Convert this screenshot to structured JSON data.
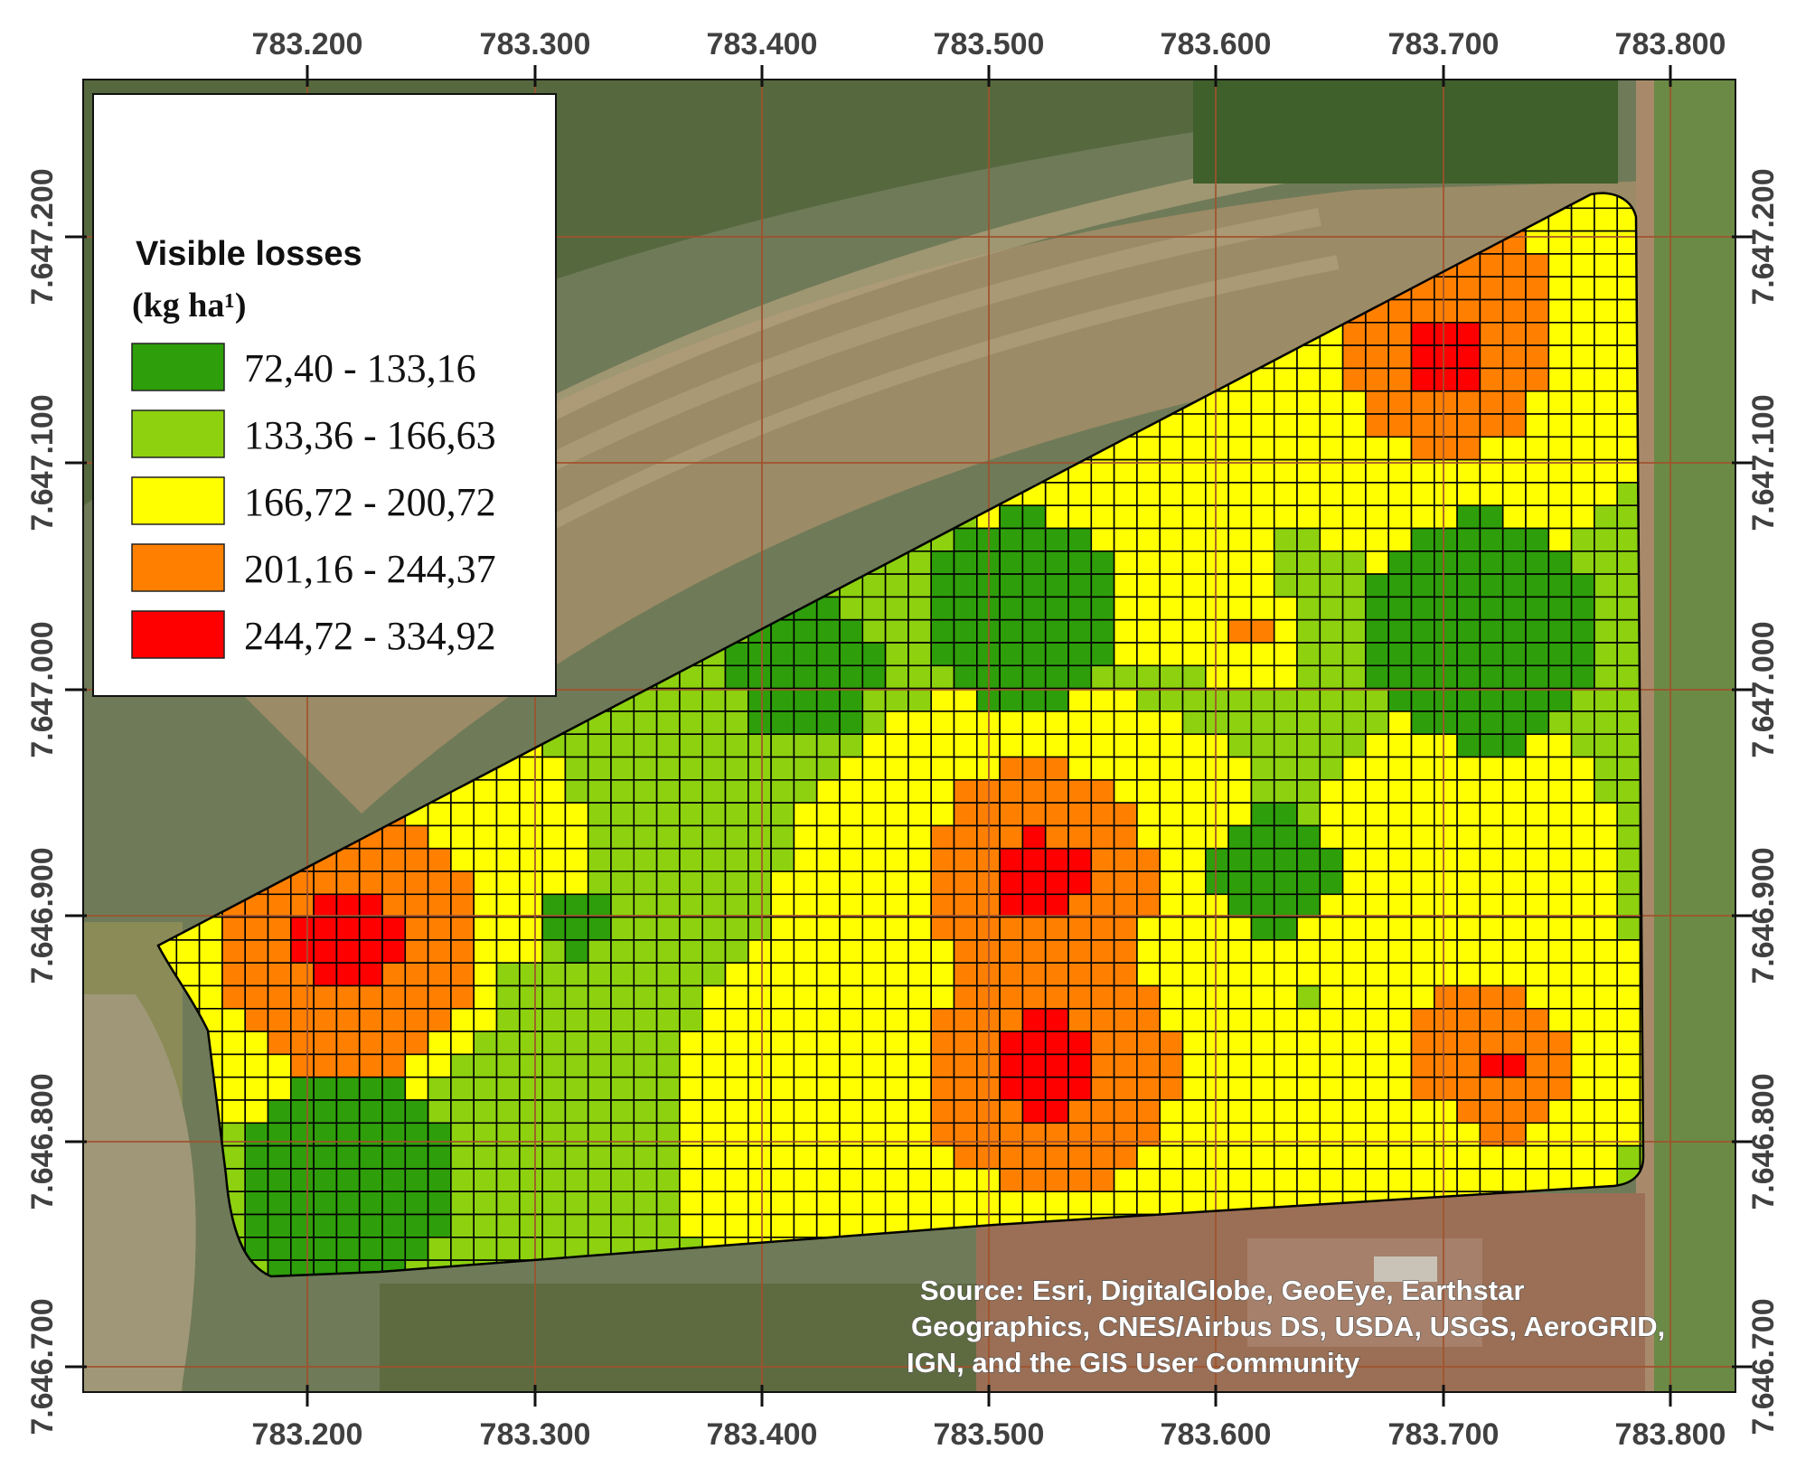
{
  "map": {
    "legend": {
      "title": "Visible losses",
      "unit": "(kg ha¹)",
      "classes": [
        {
          "label": "72,40 - 133,16",
          "color": "#2e9e0a"
        },
        {
          "label": "133,36 - 166,63",
          "color": "#8dd10f"
        },
        {
          "label": "166,72 - 200,72",
          "color": "#ffff00"
        },
        {
          "label": "201,16 - 244,37",
          "color": "#ff8000"
        },
        {
          "label": "244,72 - 334,92",
          "color": "#ff0000"
        }
      ]
    },
    "x_ticks": [
      "783.200",
      "783.300",
      "783.400",
      "783.500",
      "783.600",
      "783.700",
      "783.800"
    ],
    "y_ticks": [
      "7.647.200",
      "7.647.100",
      "7.647.000",
      "7.646.900",
      "7.646.800",
      "7.646.700"
    ],
    "source_lines": [
      "Source: Esri, DigitalGlobe, GeoEye, Earthstar",
      "Geographics, CNES/Airbus DS, USDA, USGS, AeroGRID,",
      "IGN, and the GIS User Community"
    ],
    "colors": {
      "grid_lines": "#000000",
      "graticule": "#a0522d",
      "field_outline": "#000000"
    }
  }
}
